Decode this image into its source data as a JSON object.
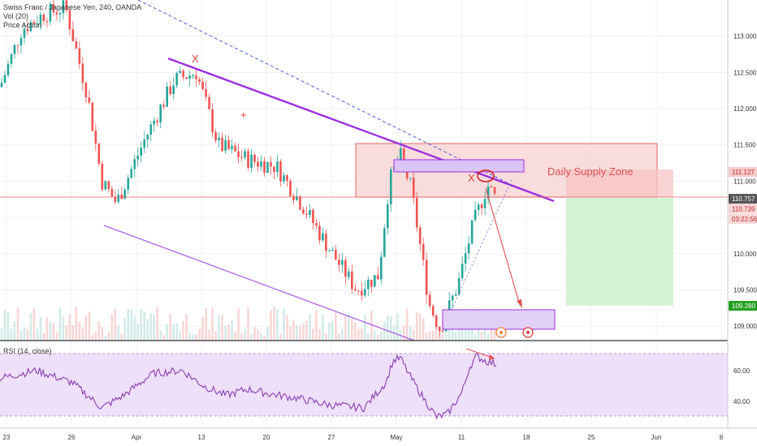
{
  "header": {
    "symbol_line": "Swiss Franc / Japanese Yen, 240, OANDA",
    "vol_line": "Vol (20)",
    "indicator_line": "Price Action"
  },
  "rsi": {
    "label": "RSI (14, close)",
    "axis_ticks": [
      "60.00",
      "40.00"
    ]
  },
  "annotations": {
    "zone_label": "Daily Supply Zone",
    "x_marks": [
      "X",
      "X"
    ]
  },
  "price_axis": {
    "ticks": [
      "113.000",
      "112.500",
      "112.000",
      "111.500",
      "111.000",
      "110.500",
      "110.000",
      "109.500",
      "109.000"
    ],
    "tags": [
      {
        "text": "111.127",
        "color": "#f8c9c9",
        "text_color": "#c03030"
      },
      {
        "text": "110.757",
        "color": "#555555",
        "text_color": "#ffffff"
      },
      {
        "text": "110.739",
        "color": "#f8d6d6",
        "text_color": "#c03030"
      },
      {
        "text": "03:22:56",
        "color": "#f8d6d6",
        "text_color": "#c03030"
      },
      {
        "text": "109.280",
        "color": "#22a022",
        "text_color": "#ffffff"
      }
    ]
  },
  "time_axis": {
    "labels": [
      "23",
      "26",
      "Apr",
      "13",
      "20",
      "27",
      "May",
      "11",
      "18",
      "25",
      "Jun",
      "8"
    ]
  },
  "colors": {
    "up": "#26a69a",
    "down": "#ef5350",
    "channel": "#9b30e0",
    "rsi_line": "#8a3fb0",
    "rsi_band": "#e9d8fb",
    "supply_zone": "#f8d7d7",
    "target_zone": "#d2f3d2"
  },
  "chart_data": {
    "type": "candlestick",
    "instrument": "Swiss Franc / Japanese Yen",
    "timeframe": "240",
    "source": "OANDA",
    "ylim": [
      108.8,
      113.5
    ],
    "price_levels": {
      "last": 110.757,
      "supply_top": 111.5,
      "supply_bottom": 110.77,
      "entry": 110.757,
      "stop": 111.127,
      "target": 109.28
    },
    "waypoints": [
      {
        "x": 0.0,
        "p": 112.3
      },
      {
        "x": 0.03,
        "p": 113.1
      },
      {
        "x": 0.06,
        "p": 113.3
      },
      {
        "x": 0.09,
        "p": 113.4
      },
      {
        "x": 0.12,
        "p": 112.2
      },
      {
        "x": 0.14,
        "p": 111.0
      },
      {
        "x": 0.16,
        "p": 110.7
      },
      {
        "x": 0.2,
        "p": 111.6
      },
      {
        "x": 0.24,
        "p": 112.4
      },
      {
        "x": 0.27,
        "p": 112.5
      },
      {
        "x": 0.3,
        "p": 111.5
      },
      {
        "x": 0.34,
        "p": 111.3
      },
      {
        "x": 0.38,
        "p": 111.2
      },
      {
        "x": 0.42,
        "p": 110.6
      },
      {
        "x": 0.45,
        "p": 110.1
      },
      {
        "x": 0.49,
        "p": 109.5
      },
      {
        "x": 0.52,
        "p": 109.7
      },
      {
        "x": 0.535,
        "p": 111.0
      },
      {
        "x": 0.55,
        "p": 111.35
      },
      {
        "x": 0.565,
        "p": 110.9
      },
      {
        "x": 0.59,
        "p": 109.3
      },
      {
        "x": 0.605,
        "p": 108.95
      },
      {
        "x": 0.63,
        "p": 109.6
      },
      {
        "x": 0.65,
        "p": 110.4
      },
      {
        "x": 0.67,
        "p": 110.95
      },
      {
        "x": 0.682,
        "p": 110.75
      }
    ],
    "rsi_range": [
      25,
      75
    ],
    "rsi_waypoints": [
      {
        "x": 0.0,
        "v": 55
      },
      {
        "x": 0.05,
        "v": 60
      },
      {
        "x": 0.1,
        "v": 52
      },
      {
        "x": 0.14,
        "v": 36
      },
      {
        "x": 0.17,
        "v": 44
      },
      {
        "x": 0.21,
        "v": 58
      },
      {
        "x": 0.25,
        "v": 60
      },
      {
        "x": 0.28,
        "v": 50
      },
      {
        "x": 0.31,
        "v": 44
      },
      {
        "x": 0.34,
        "v": 48
      },
      {
        "x": 0.37,
        "v": 45
      },
      {
        "x": 0.41,
        "v": 42
      },
      {
        "x": 0.45,
        "v": 38
      },
      {
        "x": 0.5,
        "v": 36
      },
      {
        "x": 0.53,
        "v": 52
      },
      {
        "x": 0.54,
        "v": 66
      },
      {
        "x": 0.55,
        "v": 68
      },
      {
        "x": 0.565,
        "v": 55
      },
      {
        "x": 0.585,
        "v": 40
      },
      {
        "x": 0.6,
        "v": 30
      },
      {
        "x": 0.615,
        "v": 32
      },
      {
        "x": 0.635,
        "v": 46
      },
      {
        "x": 0.645,
        "v": 62
      },
      {
        "x": 0.655,
        "v": 69
      },
      {
        "x": 0.668,
        "v": 66
      },
      {
        "x": 0.682,
        "v": 64
      }
    ]
  }
}
